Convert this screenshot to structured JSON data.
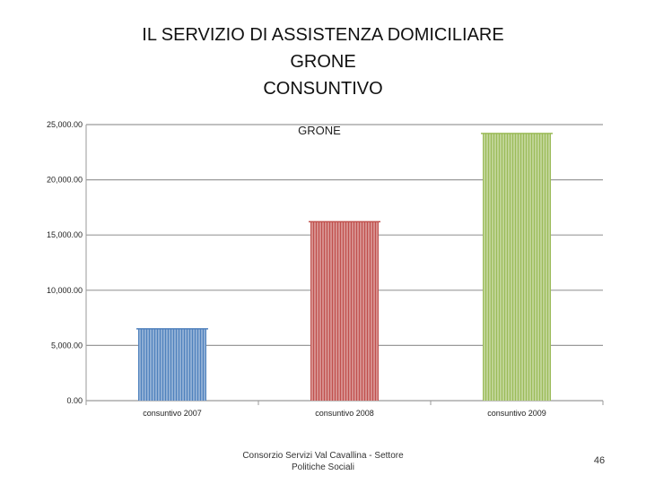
{
  "slide": {
    "title_lines": [
      "IL SERVIZIO DI ASSISTENZA DOMICILIARE",
      "GRONE",
      "CONSUNTIVO"
    ],
    "footer_lines": [
      "Consorzio Servizi Val Cavallina - Settore",
      "Politiche Sociali"
    ],
    "page_number": "46"
  },
  "chart_data": {
    "type": "bar",
    "title": "GRONE",
    "categories": [
      "consuntivo 2007",
      "consuntivo 2008",
      "consuntivo 2009"
    ],
    "values": [
      6500,
      16200,
      24200
    ],
    "colors": [
      "#4f81bd",
      "#c0504d",
      "#9bbb59"
    ],
    "ylim": [
      0,
      25000
    ],
    "yticks": [
      0,
      5000,
      10000,
      15000,
      20000,
      25000
    ],
    "ytick_labels": [
      "0.00",
      "5,000.00",
      "10,000.00",
      "15,000.00",
      "20,000.00",
      "25,000.00"
    ],
    "grid": true,
    "legend": "none",
    "xlabel": "",
    "ylabel": ""
  }
}
